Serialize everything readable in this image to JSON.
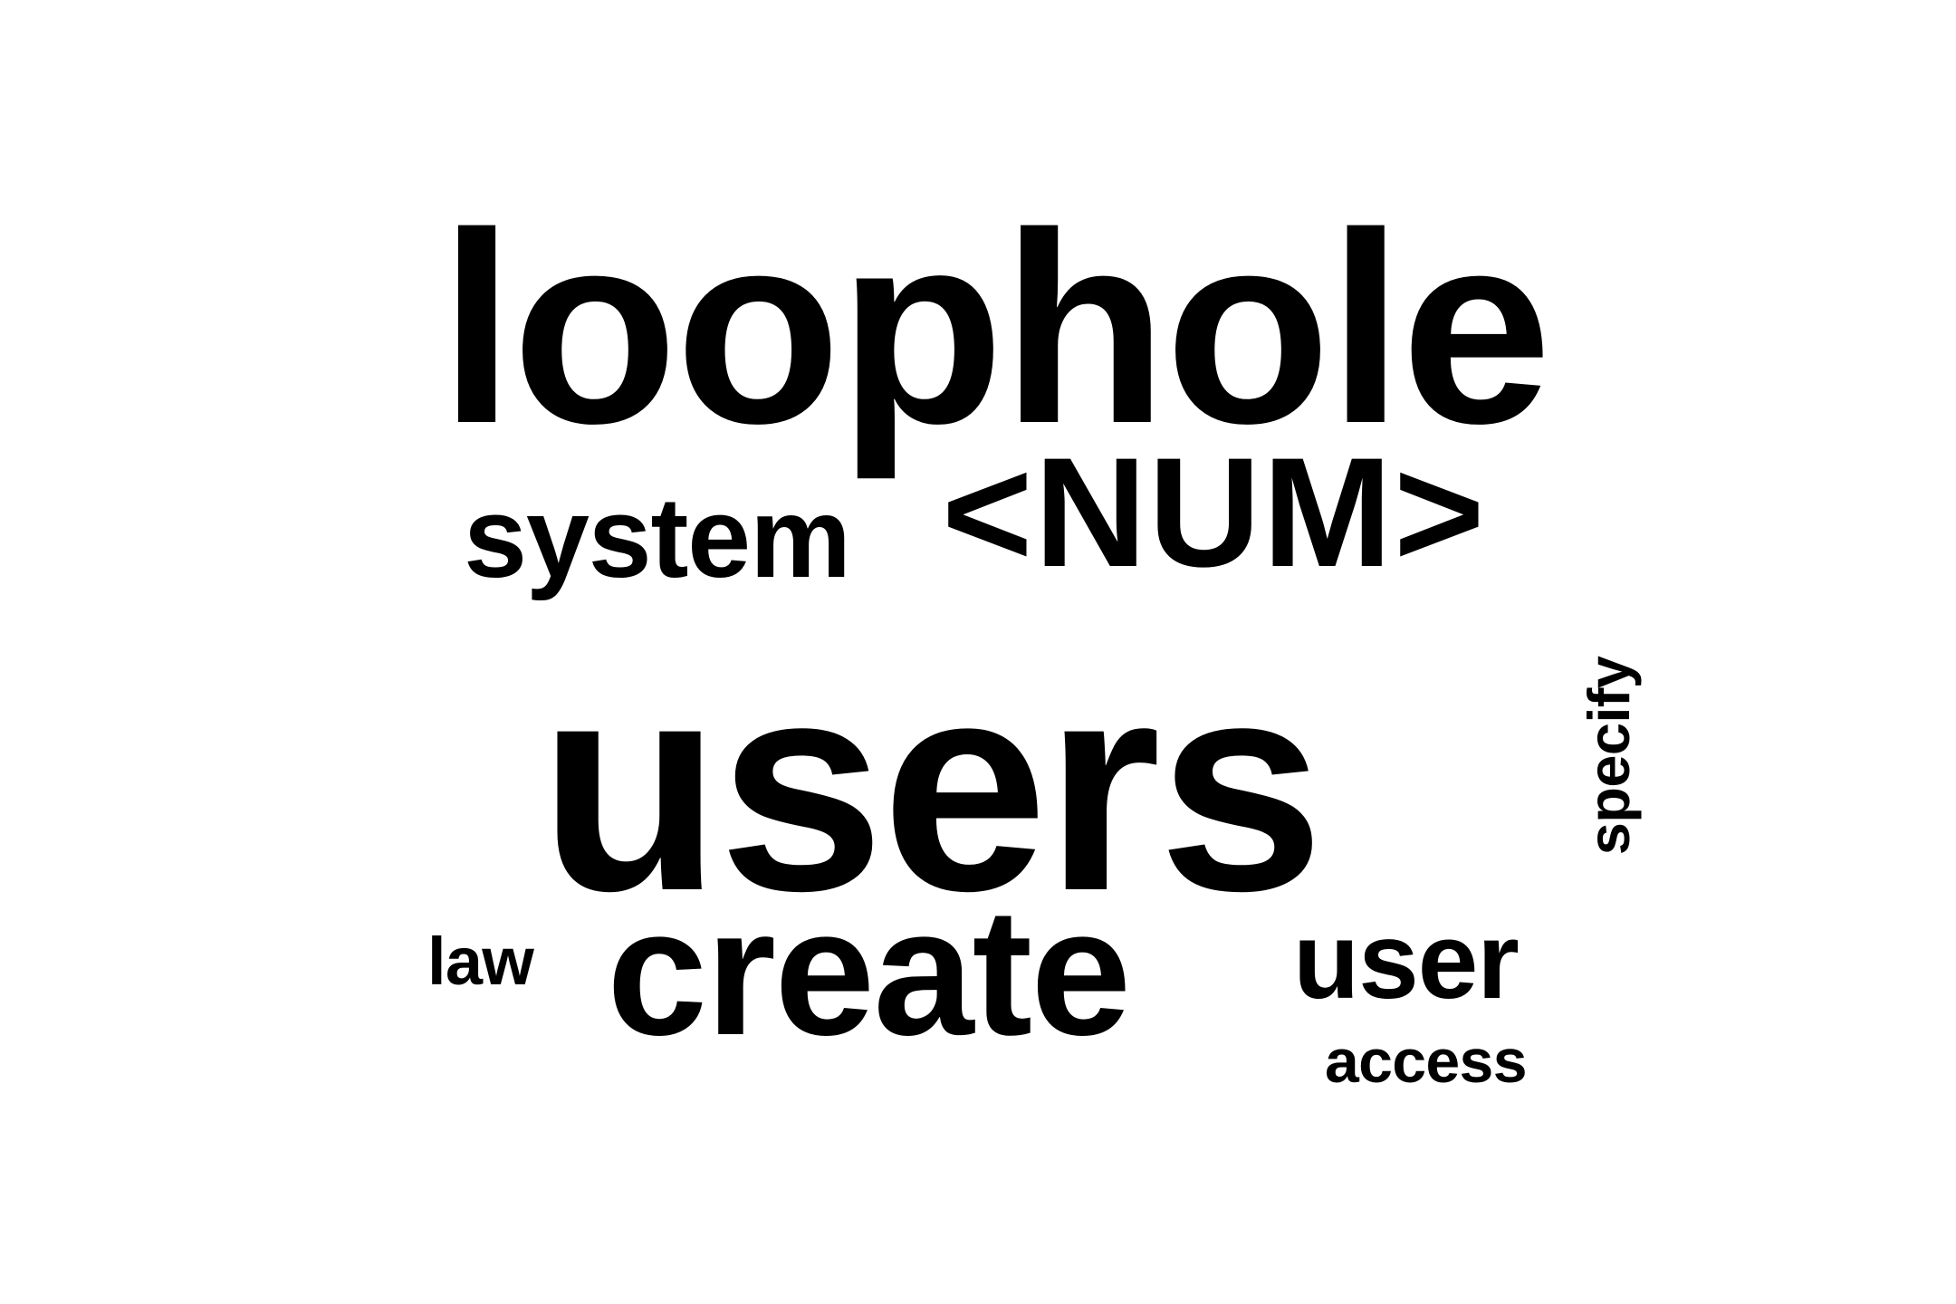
{
  "word_cloud": {
    "background_color": "#ffffff",
    "text_color": "#000000",
    "words": [
      {
        "text": "loophole",
        "orientation": "horizontal"
      },
      {
        "text": "<NUM>",
        "orientation": "horizontal"
      },
      {
        "text": "system",
        "orientation": "horizontal"
      },
      {
        "text": "users",
        "orientation": "horizontal"
      },
      {
        "text": "specify",
        "orientation": "vertical"
      },
      {
        "text": "law",
        "orientation": "horizontal"
      },
      {
        "text": "create",
        "orientation": "horizontal"
      },
      {
        "text": "user",
        "orientation": "horizontal"
      },
      {
        "text": "access",
        "orientation": "horizontal"
      }
    ]
  }
}
